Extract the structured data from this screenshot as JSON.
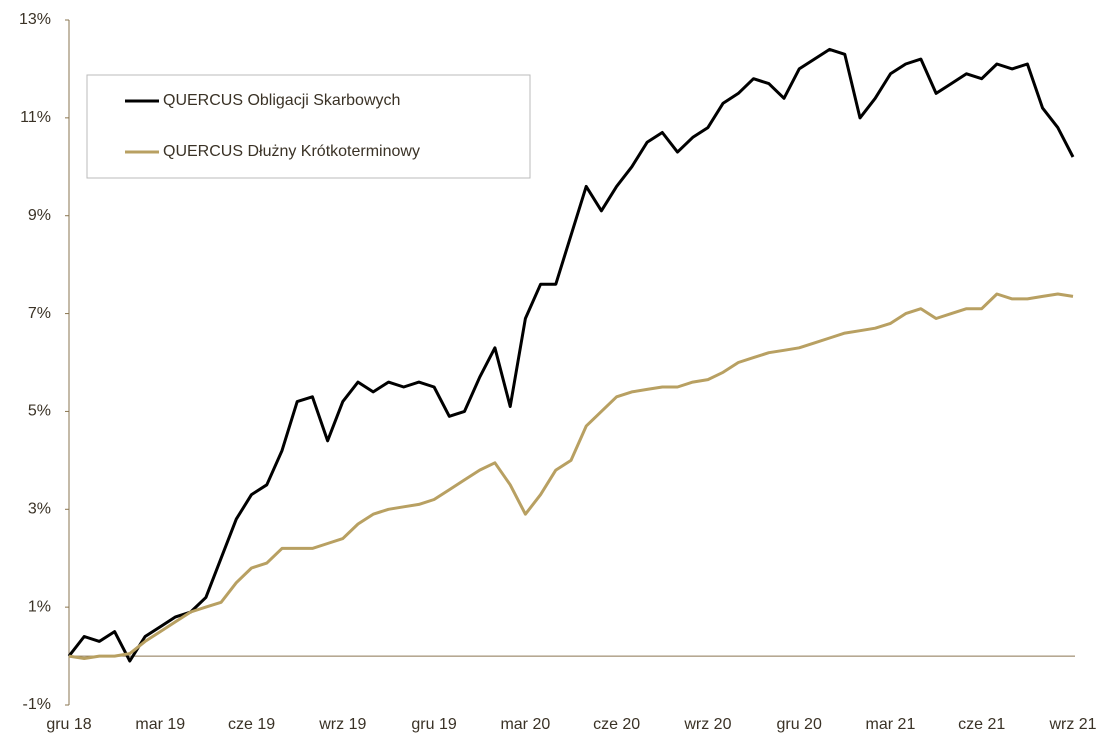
{
  "chart_data": {
    "type": "line",
    "categories": [
      "gru 18",
      null,
      null,
      null,
      null,
      null,
      "mar 19",
      null,
      null,
      null,
      null,
      null,
      "cze 19",
      null,
      null,
      null,
      null,
      null,
      "wrz 19",
      null,
      null,
      null,
      null,
      null,
      "gru 19",
      null,
      null,
      null,
      null,
      null,
      "mar 20",
      null,
      null,
      null,
      null,
      null,
      "cze 20",
      null,
      null,
      null,
      null,
      null,
      "wrz 20",
      null,
      null,
      null,
      null,
      null,
      "gru 20",
      null,
      null,
      null,
      null,
      null,
      "mar 21",
      null,
      null,
      null,
      null,
      null,
      "cze 21",
      null,
      null,
      null,
      null,
      null,
      "wrz 21"
    ],
    "series": [
      {
        "name": "QUERCUS Obligacji Skarbowych",
        "color": "#000000",
        "values": [
          0.0,
          0.4,
          0.3,
          0.5,
          -0.1,
          0.4,
          0.6,
          0.8,
          0.9,
          1.2,
          2.0,
          2.8,
          3.3,
          3.5,
          4.2,
          5.2,
          5.3,
          4.4,
          5.2,
          5.6,
          5.4,
          5.6,
          5.5,
          5.6,
          5.5,
          4.9,
          5.0,
          5.7,
          6.3,
          5.1,
          6.9,
          7.6,
          7.6,
          8.6,
          9.6,
          9.1,
          9.6,
          10.0,
          10.5,
          10.7,
          10.3,
          10.6,
          10.8,
          11.3,
          11.5,
          11.8,
          11.7,
          11.4,
          12.0,
          12.2,
          12.4,
          12.3,
          11.0,
          11.4,
          11.9,
          12.1,
          12.2,
          11.5,
          11.7,
          11.9,
          11.8,
          12.1,
          12.0,
          12.1,
          11.2,
          10.8,
          10.2
        ]
      },
      {
        "name": "QUERCUS Dłużny Krótkoterminowy",
        "color": "#b8a062",
        "values": [
          0.0,
          -0.05,
          0.0,
          0.0,
          0.05,
          0.3,
          0.5,
          0.7,
          0.9,
          1.0,
          1.1,
          1.5,
          1.8,
          1.9,
          2.2,
          2.2,
          2.2,
          2.3,
          2.4,
          2.7,
          2.9,
          3.0,
          3.05,
          3.1,
          3.2,
          3.4,
          3.6,
          3.8,
          3.95,
          3.5,
          2.9,
          3.3,
          3.8,
          4.0,
          4.7,
          5.0,
          5.3,
          5.4,
          5.45,
          5.5,
          5.5,
          5.6,
          5.65,
          5.8,
          6.0,
          6.1,
          6.2,
          6.25,
          6.3,
          6.4,
          6.5,
          6.6,
          6.65,
          6.7,
          6.8,
          7.0,
          7.1,
          6.9,
          7.0,
          7.1,
          7.1,
          7.4,
          7.3,
          7.3,
          7.35,
          7.4,
          7.35
        ]
      }
    ],
    "ylim": [
      -1,
      13
    ],
    "yticks": [
      {
        "value": -1,
        "label": "-1%"
      },
      {
        "value": 1,
        "label": "1%"
      },
      {
        "value": 3,
        "label": "3%"
      },
      {
        "value": 5,
        "label": "5%"
      },
      {
        "value": 7,
        "label": "7%"
      },
      {
        "value": 9,
        "label": "9%"
      },
      {
        "value": 11,
        "label": "11%"
      },
      {
        "value": 13,
        "label": "13%"
      }
    ],
    "grid": false,
    "legend": "upper left"
  }
}
